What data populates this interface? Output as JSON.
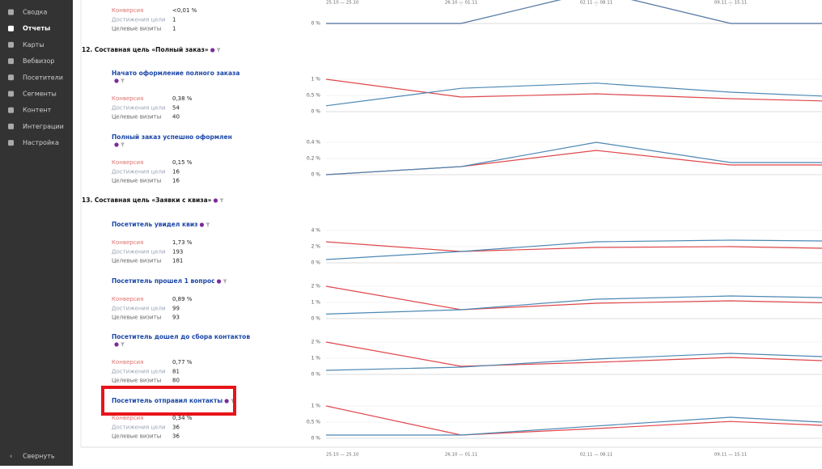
{
  "sidebar": {
    "items": [
      "Сводка",
      "Отчеты",
      "Карты",
      "Вебвизор",
      "Посетители",
      "Сегменты",
      "Контент",
      "Интеграции",
      "Настройка"
    ],
    "active": 1,
    "collapse": "Свернуть"
  },
  "metric_labels": [
    "Конверсия",
    "Достижения цели",
    "Целевые визиты"
  ],
  "x_labels": [
    "25.10 — 25.10",
    "26.10 — 01.11",
    "02.11 — 08.11",
    "09.11 — 15.11",
    null
  ],
  "partial_goal": {
    "conversion": "<0,01 %",
    "reached": 1,
    "visits": 1,
    "chart": {
      "ylim": [
        0,
        0.02
      ],
      "yticks": [
        {
          "value": 0,
          "label": "0 %"
        }
      ],
      "series": [
        {
          "color": "#e0474c",
          "values": [
            0,
            0,
            0.02,
            0,
            0
          ]
        },
        {
          "color": "#4d88b4",
          "values": [
            0,
            0,
            0.02,
            0,
            0
          ]
        }
      ]
    }
  },
  "sections": [
    {
      "heading": "12. Составная цель «Полный заказ»",
      "goals": [
        {
          "title": "Начато оформление полного заказа",
          "conversion": "0,38 %",
          "reached": 54,
          "visits": 40,
          "chart": {
            "ylim": [
              0,
              1
            ],
            "yticks": [
              {
                "value": 0,
                "label": "0 %"
              },
              {
                "value": 0.5,
                "label": "0,5 %"
              },
              {
                "value": 1,
                "label": "1 %"
              }
            ],
            "series": [
              {
                "color": "#e0474c",
                "values": [
                  1.0,
                  0.45,
                  0.55,
                  0.4,
                  0.33
                ]
              },
              {
                "color": "#4d88b4",
                "values": [
                  0.18,
                  0.72,
                  0.88,
                  0.6,
                  0.48
                ]
              }
            ]
          }
        },
        {
          "title": "Полный заказ успешно оформлен",
          "conversion": "0,15 %",
          "reached": 16,
          "visits": 16,
          "chart": {
            "ylim": [
              0,
              0.4
            ],
            "yticks": [
              {
                "value": 0,
                "label": "0 %"
              },
              {
                "value": 0.2,
                "label": "0,2 %"
              },
              {
                "value": 0.4,
                "label": "0,4 %"
              }
            ],
            "series": [
              {
                "color": "#e0474c",
                "values": [
                  0,
                  0.1,
                  0.3,
                  0.12,
                  0.12
                ]
              },
              {
                "color": "#4d88b4",
                "values": [
                  0,
                  0.1,
                  0.4,
                  0.15,
                  0.15
                ]
              }
            ]
          }
        }
      ]
    },
    {
      "heading": "13. Составная цель «Заявки с квиза»",
      "goals": [
        {
          "title": "Посетитель увидел квиз",
          "conversion": "1,73 %",
          "reached": 193,
          "visits": 181,
          "chart": {
            "ylim": [
              0,
              4
            ],
            "yticks": [
              {
                "value": 0,
                "label": "0 %"
              },
              {
                "value": 2,
                "label": "2 %"
              },
              {
                "value": 4,
                "label": "4 %"
              }
            ],
            "series": [
              {
                "color": "#e0474c",
                "values": [
                  2.6,
                  1.4,
                  1.9,
                  2.0,
                  1.8
                ]
              },
              {
                "color": "#4d88b4",
                "values": [
                  0.4,
                  1.4,
                  2.6,
                  2.8,
                  2.7
                ]
              }
            ]
          }
        },
        {
          "title": "Посетитель прошел 1 вопрос",
          "conversion": "0,89 %",
          "reached": 99,
          "visits": 93,
          "chart": {
            "ylim": [
              0,
              2
            ],
            "yticks": [
              {
                "value": 0,
                "label": "0 %"
              },
              {
                "value": 1,
                "label": "1 %"
              },
              {
                "value": 2,
                "label": "2 %"
              }
            ],
            "series": [
              {
                "color": "#e0474c",
                "values": [
                  2.0,
                  0.55,
                  0.95,
                  1.1,
                  0.98
                ]
              },
              {
                "color": "#4d88b4",
                "values": [
                  0.28,
                  0.55,
                  1.2,
                  1.4,
                  1.3
                ]
              }
            ]
          }
        },
        {
          "title": "Посетитель дошел до сбора контактов",
          "conversion": "0,77 %",
          "reached": 81,
          "visits": 80,
          "chart": {
            "ylim": [
              0,
              2
            ],
            "yticks": [
              {
                "value": 0,
                "label": "0 %"
              },
              {
                "value": 1,
                "label": "1 %"
              },
              {
                "value": 2,
                "label": "2 %"
              }
            ],
            "series": [
              {
                "color": "#e0474c",
                "values": [
                  2.0,
                  0.5,
                  0.75,
                  1.05,
                  0.85
                ]
              },
              {
                "color": "#4d88b4",
                "values": [
                  0.25,
                  0.45,
                  0.95,
                  1.3,
                  1.1
                ]
              }
            ]
          }
        },
        {
          "title": "Посетитель отправил контакты",
          "conversion": "0,34 %",
          "reached": 36,
          "visits": 36,
          "chart": {
            "ylim": [
              0,
              1
            ],
            "yticks": [
              {
                "value": 0,
                "label": "0 %"
              },
              {
                "value": 0.5,
                "label": "0,5 %"
              },
              {
                "value": 1,
                "label": "1 %"
              }
            ],
            "series": [
              {
                "color": "#e0474c",
                "values": [
                  1.0,
                  0.1,
                  0.3,
                  0.52,
                  0.4
                ]
              },
              {
                "color": "#4d88b4",
                "values": [
                  0.1,
                  0.1,
                  0.38,
                  0.65,
                  0.5
                ]
              }
            ]
          }
        }
      ]
    }
  ]
}
